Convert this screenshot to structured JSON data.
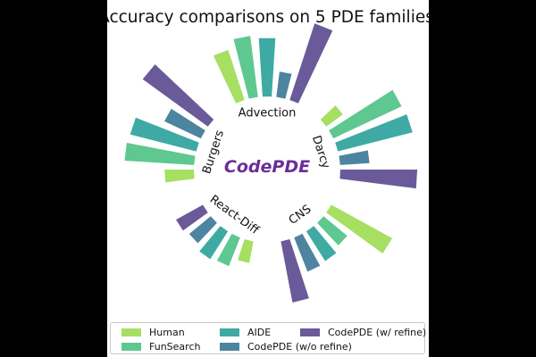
{
  "chart_data": {
    "type": "radial-bar",
    "title": "Accuracy comparisons on 5 PDE families",
    "center_label": "CodePDE",
    "categories": [
      "Advection",
      "Darcy",
      "CNS",
      "React-Diff",
      "Burgers"
    ],
    "series": [
      {
        "name": "Human",
        "color": "#a6df62",
        "values": [
          0.72,
          0.28,
          0.95,
          0.3,
          0.4
        ]
      },
      {
        "name": "FunSearch",
        "color": "#5ec890",
        "values": [
          0.84,
          1.03,
          0.42,
          0.42,
          0.95
        ]
      },
      {
        "name": "AIDE",
        "color": "#3eaaa3",
        "values": [
          0.8,
          1.05,
          0.48,
          0.45,
          0.93
        ]
      },
      {
        "name": "CodePDE (w/o refine)",
        "color": "#4d84a0",
        "values": [
          0.35,
          0.4,
          0.5,
          0.38,
          0.55
        ]
      },
      {
        "name": "CodePDE (w/ refine)",
        "color": "#6a5a9a",
        "values": [
          1.1,
          1.05,
          0.85,
          0.42,
          1.1
        ]
      }
    ],
    "legend_position": "bottom",
    "grid": false
  }
}
